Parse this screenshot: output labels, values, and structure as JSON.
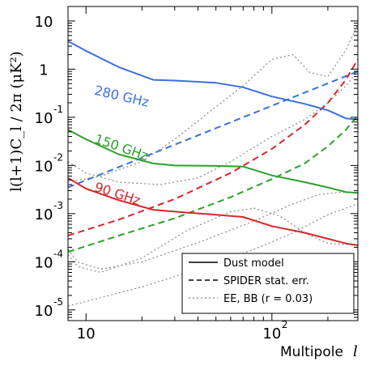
{
  "chart_data": {
    "type": "line",
    "xlabel": "Multipole",
    "xlabel_symbol": "l",
    "ylabel": "l(l+1)C_l / 2π  (μK²)",
    "xscale": "log",
    "yscale": "log",
    "xlim": [
      8,
      290
    ],
    "ylim": [
      6e-06,
      20
    ],
    "x_ticks": [
      {
        "value": 10,
        "base": "10",
        "exp": ""
      },
      {
        "value": 100,
        "base": "10",
        "exp": "2"
      }
    ],
    "y_ticks": [
      {
        "value": 10,
        "base": "10",
        "exp": ""
      },
      {
        "value": 1,
        "base": "1",
        "exp": ""
      },
      {
        "value": 0.1,
        "base": "10",
        "exp": "-1"
      },
      {
        "value": 0.01,
        "base": "10",
        "exp": "-2"
      },
      {
        "value": 0.001,
        "base": "10",
        "exp": "-3"
      },
      {
        "value": 0.0001,
        "base": "10",
        "exp": "-4"
      },
      {
        "value": 1e-05,
        "base": "10",
        "exp": "-5"
      }
    ],
    "legend_position": "bottom-right",
    "legend": [
      {
        "label": "Dust model",
        "style": "solid",
        "color": "#000000"
      },
      {
        "label": "SPIDER stat. err.",
        "style": "dashed",
        "color": "#000000"
      },
      {
        "label": "EE, BB (r = 0.03)",
        "style": "dotted",
        "color": "#888888"
      }
    ],
    "series": [
      {
        "name": "280 GHz",
        "kind": "dust",
        "style": "solid",
        "color": "#3b6fe0",
        "x": [
          8,
          10,
          15,
          23,
          30,
          50,
          70,
          100,
          150,
          200,
          250,
          290
        ],
        "y": [
          3.8,
          2.4,
          1.1,
          0.6,
          0.58,
          0.52,
          0.42,
          0.27,
          0.19,
          0.14,
          0.095,
          0.09
        ]
      },
      {
        "name": "150 GHz",
        "kind": "dust",
        "style": "solid",
        "color": "#2ca02c",
        "x": [
          8,
          10,
          15,
          23,
          30,
          50,
          70,
          100,
          150,
          200,
          250,
          290
        ],
        "y": [
          0.055,
          0.035,
          0.017,
          0.011,
          0.01,
          0.0098,
          0.0095,
          0.0062,
          0.0045,
          0.0035,
          0.0028,
          0.0027
        ]
      },
      {
        "name": "90 GHz",
        "kind": "dust",
        "style": "solid",
        "color": "#d62728",
        "x": [
          8,
          10,
          15,
          23,
          30,
          50,
          70,
          100,
          150,
          200,
          250,
          290
        ],
        "y": [
          0.0055,
          0.0033,
          0.0019,
          0.0012,
          0.0011,
          0.00095,
          0.00085,
          0.00055,
          0.0004,
          0.0003,
          0.00024,
          0.00022
        ]
      },
      {
        "name": "280 GHz",
        "kind": "stat",
        "style": "dashed",
        "color": "#3b6fe0",
        "x": [
          8,
          290
        ],
        "y": [
          0.0035,
          0.9
        ]
      },
      {
        "name": "150 GHz",
        "kind": "stat",
        "style": "dashed",
        "color": "#2ca02c",
        "x": [
          8,
          15,
          30,
          60,
          100,
          150,
          200,
          250,
          290
        ],
        "y": [
          0.00016,
          0.00035,
          0.0008,
          0.0022,
          0.0052,
          0.011,
          0.025,
          0.055,
          0.11
        ]
      },
      {
        "name": "90 GHz",
        "kind": "stat",
        "style": "dashed",
        "color": "#d62728",
        "x": [
          8,
          15,
          30,
          60,
          100,
          150,
          200,
          250,
          290
        ],
        "y": [
          0.00035,
          0.00075,
          0.002,
          0.007,
          0.022,
          0.07,
          0.2,
          0.6,
          1.6
        ]
      },
      {
        "name": "EE",
        "kind": "theory",
        "style": "dotted",
        "color": "#888888",
        "x": [
          8,
          12,
          20,
          30,
          45,
          70,
          100,
          130,
          160,
          200,
          250,
          290
        ],
        "y": [
          0.0045,
          0.006,
          0.012,
          0.035,
          0.12,
          0.45,
          1.6,
          2.0,
          0.85,
          0.7,
          2.5,
          8.5
        ]
      },
      {
        "name": "EE",
        "kind": "theory",
        "style": "dotted",
        "color": "#888888",
        "x": [
          8,
          10,
          15,
          25,
          40,
          60,
          100,
          150,
          200,
          250,
          290
        ],
        "y": [
          0.012,
          0.007,
          0.0045,
          0.004,
          0.0055,
          0.012,
          0.04,
          0.09,
          0.2,
          0.45,
          0.9
        ]
      },
      {
        "name": "BB",
        "kind": "theory",
        "style": "dotted",
        "color": "#888888",
        "x": [
          8,
          9,
          12,
          20,
          40,
          80,
          130,
          180,
          240,
          290
        ],
        "y": [
          0.00018,
          0.0001,
          7e-05,
          0.0001,
          0.00025,
          0.0007,
          0.0016,
          0.0025,
          0.0028,
          0.0027
        ]
      },
      {
        "name": "BB",
        "kind": "theory",
        "style": "dotted",
        "color": "#888888",
        "x": [
          8,
          9,
          12,
          20,
          35,
          60,
          80,
          110,
          150,
          200,
          250,
          290
        ],
        "y": [
          0.00014,
          8e-05,
          6e-05,
          0.00012,
          0.00045,
          0.0011,
          0.0013,
          0.0009,
          0.0004,
          0.00024,
          0.00023,
          0.00023
        ]
      },
      {
        "name": "BB",
        "kind": "theory",
        "style": "dotted",
        "color": "#888888",
        "x": [
          8,
          10,
          20,
          40,
          80,
          130,
          200,
          290
        ],
        "y": [
          1.2e-05,
          1.5e-05,
          3e-05,
          7e-05,
          0.00018,
          0.0004,
          0.00095,
          0.0016
        ]
      }
    ],
    "annotations": [
      {
        "text": "280 GHz",
        "color": "#3b6fe0",
        "series": 0
      },
      {
        "text": "150 GHz",
        "color": "#2ca02c",
        "series": 1
      },
      {
        "text": "90 GHz",
        "color": "#d62728",
        "series": 2
      }
    ]
  }
}
